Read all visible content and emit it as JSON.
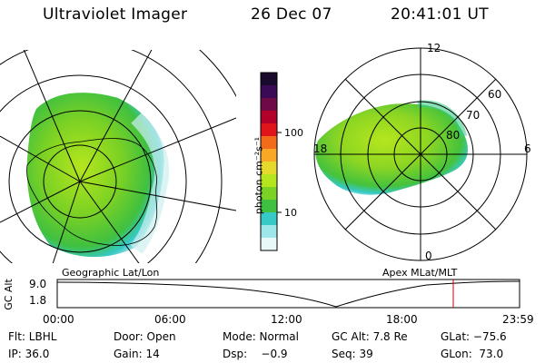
{
  "header": {
    "title": "Ultraviolet Imager",
    "date": "26 Dec 07",
    "time": "20:41:01 UT"
  },
  "colorbar": {
    "unit_label": "photon cm⁻²s⁻¹",
    "ticks": [
      "100",
      "10"
    ],
    "colors": [
      "#1a0b2e",
      "#3b0a57",
      "#700a47",
      "#b3002a",
      "#e0141b",
      "#f26b1a",
      "#f9a825",
      "#e6d92b",
      "#b5e61d",
      "#7bd124",
      "#40c040",
      "#36c9c6",
      "#9de7ea",
      "#e8f7f8"
    ]
  },
  "left_map": {
    "caption": "Geographic Lat/Lon"
  },
  "right_map": {
    "caption": "Apex MLat/MLT",
    "mlt_labels": {
      "top": "12",
      "right": "6",
      "bottom": "0",
      "left": "18"
    },
    "lat_labels": [
      "60",
      "70",
      "80"
    ]
  },
  "alt_plot": {
    "ylabel": "GC Alt",
    "y_ticks": [
      "9.0",
      "1.8"
    ],
    "x_ticks": [
      "00:00",
      "06:00",
      "12:00",
      "18:00",
      "23:59"
    ],
    "marker_color": "#cc0000"
  },
  "footer": {
    "flt": "Flt: LBHL",
    "door": "Door: Open",
    "mode": "Mode: Normal",
    "gcalt": "GC Alt: 7.8 Re",
    "glat": "GLat: −75.6",
    "ip": "IP: 36.0",
    "gain": "Gain: 14",
    "dsp": "Dsp:    −0.9",
    "seq": "Seq: 39",
    "glon": "GLon:  73.0"
  }
}
